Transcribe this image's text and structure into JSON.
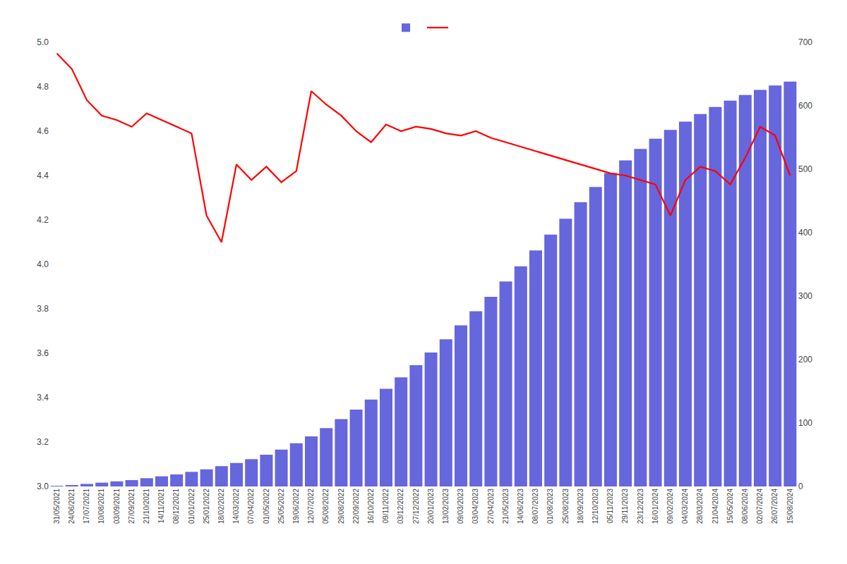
{
  "chart_data": {
    "type": "bar",
    "categories": [
      "31/05/2021",
      "24/06/2021",
      "17/07/2021",
      "10/08/2021",
      "03/09/2021",
      "27/09/2021",
      "21/10/2021",
      "14/11/2021",
      "08/12/2021",
      "01/01/2022",
      "25/01/2022",
      "18/02/2022",
      "14/03/2022",
      "07/04/2022",
      "01/05/2022",
      "25/05/2022",
      "19/06/2022",
      "12/07/2022",
      "05/08/2022",
      "29/08/2022",
      "22/09/2022",
      "16/10/2022",
      "09/11/2022",
      "03/12/2022",
      "27/12/2022",
      "20/01/2023",
      "13/02/2023",
      "09/03/2023",
      "03/04/2023",
      "27/04/2023",
      "21/05/2023",
      "14/06/2023",
      "08/07/2023",
      "01/08/2023",
      "25/08/2023",
      "18/09/2023",
      "12/10/2023",
      "05/11/2023",
      "29/11/2023",
      "23/12/2023",
      "16/01/2024",
      "09/02/2024",
      "04/03/2024",
      "28/03/2024",
      "21/04/2024",
      "15/05/2024",
      "08/06/2024",
      "02/07/2024",
      "26/07/2024",
      "15/08/2024"
    ],
    "series": [
      {
        "type": "bar",
        "color": "#6666dd",
        "axis": "y2",
        "values": [
          1,
          2,
          4,
          6,
          8,
          10,
          13,
          16,
          19,
          23,
          27,
          32,
          37,
          43,
          50,
          58,
          68,
          79,
          92,
          106,
          121,
          137,
          154,
          172,
          191,
          211,
          232,
          254,
          276,
          299,
          323,
          347,
          372,
          397,
          422,
          448,
          472,
          494,
          514,
          532,
          548,
          562,
          575,
          587,
          598,
          608,
          617,
          625,
          632,
          638
        ]
      },
      {
        "type": "line",
        "color": "#ff0000",
        "values": [
          4.95,
          4.88,
          4.74,
          4.67,
          4.65,
          4.62,
          4.68,
          4.65,
          4.62,
          4.59,
          4.22,
          4.1,
          4.45,
          4.38,
          4.44,
          4.37,
          4.42,
          4.78,
          4.72,
          4.67,
          4.6,
          4.55,
          4.63,
          4.6,
          4.62,
          4.61,
          4.59,
          4.58,
          4.6,
          4.57,
          4.55,
          4.53,
          4.51,
          4.49,
          4.47,
          4.45,
          4.43,
          4.41,
          4.4,
          4.38,
          4.36,
          4.22,
          4.38,
          4.44,
          4.42,
          4.36,
          4.48,
          4.62,
          4.58,
          4.4
        ]
      }
    ],
    "ylim": [
      3.0,
      5.0
    ],
    "yticks": [
      {
        "value": 3.0,
        "label": "3.0"
      },
      3.2,
      3.4,
      3.6,
      3.8,
      {
        "value": 4.0,
        "label": "4.0"
      },
      4.2,
      4.4,
      4.6,
      4.8,
      {
        "value": 5.0,
        "label": "5.0"
      }
    ],
    "y2lim": [
      0,
      700
    ],
    "y2ticks": [
      0,
      100,
      200,
      300,
      400,
      500,
      600,
      700
    ],
    "grid": false,
    "legend": "top"
  }
}
